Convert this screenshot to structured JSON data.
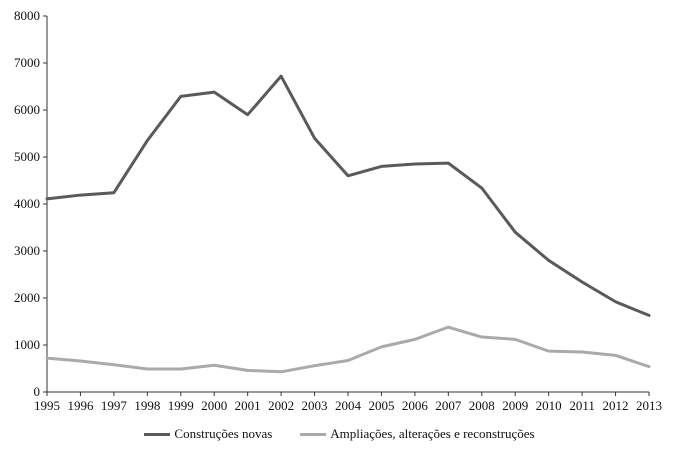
{
  "chart_data": {
    "type": "line",
    "title": "",
    "xlabel": "",
    "ylabel": "",
    "categories": [
      "1995",
      "1996",
      "1997",
      "1998",
      "1999",
      "2000",
      "2001",
      "2002",
      "2003",
      "2004",
      "2005",
      "2006",
      "2007",
      "2008",
      "2009",
      "2010",
      "2011",
      "2012",
      "2013"
    ],
    "ylim": [
      0,
      8000
    ],
    "yticks": [
      "0",
      "1000",
      "2000",
      "3000",
      "4000",
      "5000",
      "6000",
      "7000",
      "8000"
    ],
    "grid": false,
    "legend_position": "bottom",
    "series": [
      {
        "name": "Construções novas",
        "color": "#5a5a5a",
        "values": [
          4110,
          4190,
          4240,
          5350,
          6290,
          6380,
          5900,
          6720,
          5400,
          4600,
          4800,
          4850,
          4870,
          4340,
          3400,
          2800,
          2340,
          1920,
          1630
        ]
      },
      {
        "name": "Ampliações, alterações e reconstruções",
        "color": "#aaaaaa",
        "values": [
          720,
          660,
          580,
          490,
          490,
          570,
          460,
          430,
          560,
          670,
          960,
          1120,
          1380,
          1170,
          1120,
          870,
          850,
          780,
          540
        ]
      }
    ]
  }
}
